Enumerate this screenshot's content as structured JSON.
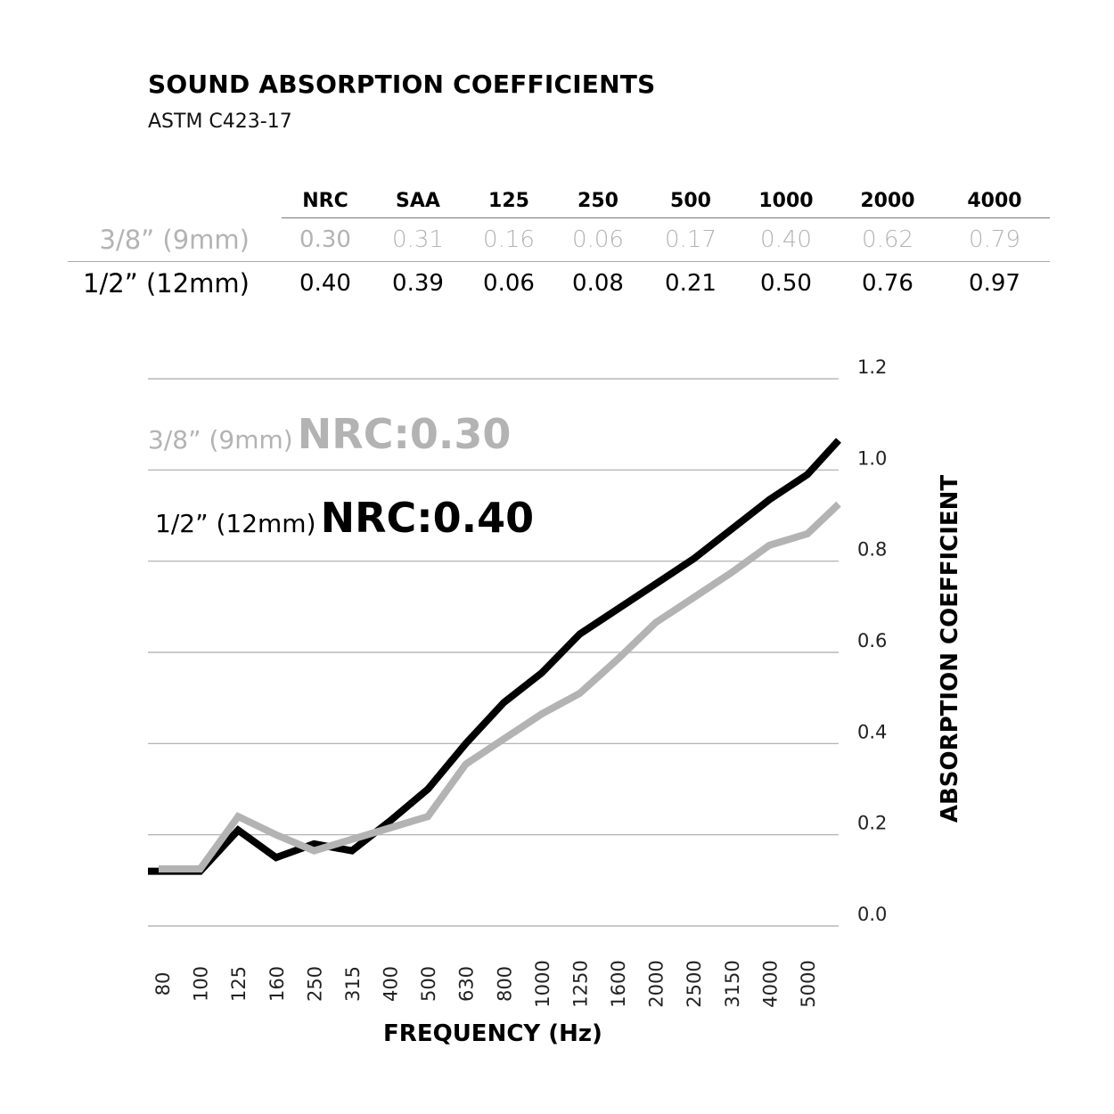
{
  "header": {
    "title": "SOUND ABSORPTION COEFFICIENTS",
    "subtitle": "ASTM C423-17"
  },
  "table": {
    "columns": [
      "NRC",
      "SAA",
      "125",
      "250",
      "500",
      "1000",
      "2000",
      "4000"
    ],
    "rows": [
      {
        "label": "3/8” (9mm)",
        "values": [
          "0.30",
          "0.31",
          "0.16",
          "0.06",
          "0.17",
          "0.40",
          "0.62",
          "0.79"
        ]
      },
      {
        "label": "1/2” (12mm)",
        "values": [
          "0.40",
          "0.39",
          "0.06",
          "0.08",
          "0.21",
          "0.50",
          "0.76",
          "0.97"
        ]
      }
    ]
  },
  "annotations": {
    "thin": {
      "size": "3/8” (9mm)",
      "nrc": "NRC:0.30"
    },
    "thick": {
      "size": "1/2” (12mm)",
      "nrc": "NRC:0.40"
    }
  },
  "colors": {
    "thin_series": "#b3b3b3",
    "thick_series": "#000000",
    "grid": "#aaaaaa"
  },
  "chart_data": {
    "type": "line",
    "title": "",
    "xlabel": "FREQUENCY (Hz)",
    "ylabel": "ABSORPTION COEFFICIENT",
    "ylim": [
      0,
      1.2
    ],
    "yticks": [
      "0.0",
      "0.2",
      "0.4",
      "0.6",
      "0.8",
      "1.0",
      "1.2"
    ],
    "grid": true,
    "y_axis_side": "right",
    "categories": [
      "80",
      "100",
      "125",
      "160",
      "250",
      "315",
      "400",
      "500",
      "630",
      "800",
      "1000",
      "1250",
      "1600",
      "2000",
      "2500",
      "3150",
      "4000",
      "5000"
    ],
    "series": [
      {
        "name": "1/2” (12mm)",
        "color": "#000000",
        "values": [
          0.12,
          0.12,
          0.21,
          0.15,
          0.18,
          0.165,
          0.23,
          0.3,
          0.4,
          0.49,
          0.555,
          0.64,
          0.695,
          0.75,
          0.805,
          0.87,
          0.935,
          0.99
        ],
        "end_value": 1.065
      },
      {
        "name": "3/8” (9mm)",
        "color": "#b3b3b3",
        "values": [
          0.125,
          0.125,
          0.24,
          0.2,
          0.165,
          0.19,
          0.215,
          0.24,
          0.355,
          0.41,
          0.465,
          0.51,
          0.585,
          0.665,
          0.72,
          0.775,
          0.835,
          0.86
        ],
        "end_value": 0.925
      }
    ]
  }
}
